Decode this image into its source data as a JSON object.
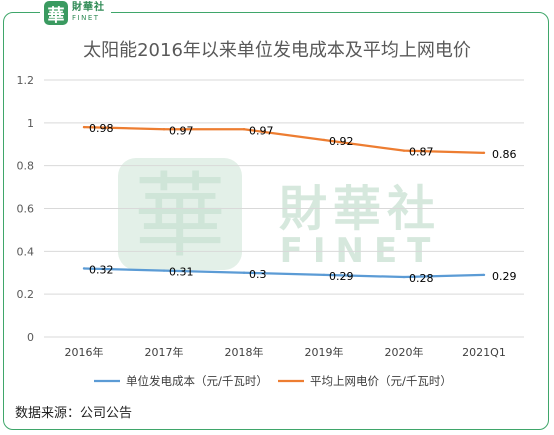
{
  "logo": {
    "mark": "華",
    "cn": "財華社",
    "en": "FINET"
  },
  "watermark": {
    "mark": "華",
    "cn": "財華社",
    "en": "FINET"
  },
  "source": "数据来源：公司公告",
  "colors": {
    "frame": "#3fa66a",
    "series1": "#5b9bd5",
    "series2": "#ed7d31",
    "grid": "#d9d9d9",
    "watermark": "#cfe5d8"
  },
  "chart_data": {
    "type": "line",
    "title": "太阳能2016年以来单位发电成本及平均上网电价",
    "categories": [
      "2016年",
      "2017年",
      "2018年",
      "2019年",
      "2020年",
      "2021Q1"
    ],
    "ylim": [
      0,
      1.2
    ],
    "yticks": [
      "0",
      "0.2",
      "0.4",
      "0.6",
      "0.8",
      "1",
      "1.2"
    ],
    "grid": true,
    "legend": "bottom",
    "series": [
      {
        "name": "单位发电成本（元/千瓦时）",
        "values": [
          0.32,
          0.31,
          0.3,
          0.29,
          0.28,
          0.29
        ],
        "labels": [
          "0.32",
          "0.31",
          "0.3",
          "0.29",
          "0.28",
          "0.29"
        ]
      },
      {
        "name": "平均上网电价（元/千瓦时）",
        "values": [
          0.98,
          0.97,
          0.97,
          0.92,
          0.87,
          0.86
        ],
        "labels": [
          "0.98",
          "0.97",
          "0.97",
          "0.92",
          "0.87",
          "0.86"
        ]
      }
    ]
  }
}
